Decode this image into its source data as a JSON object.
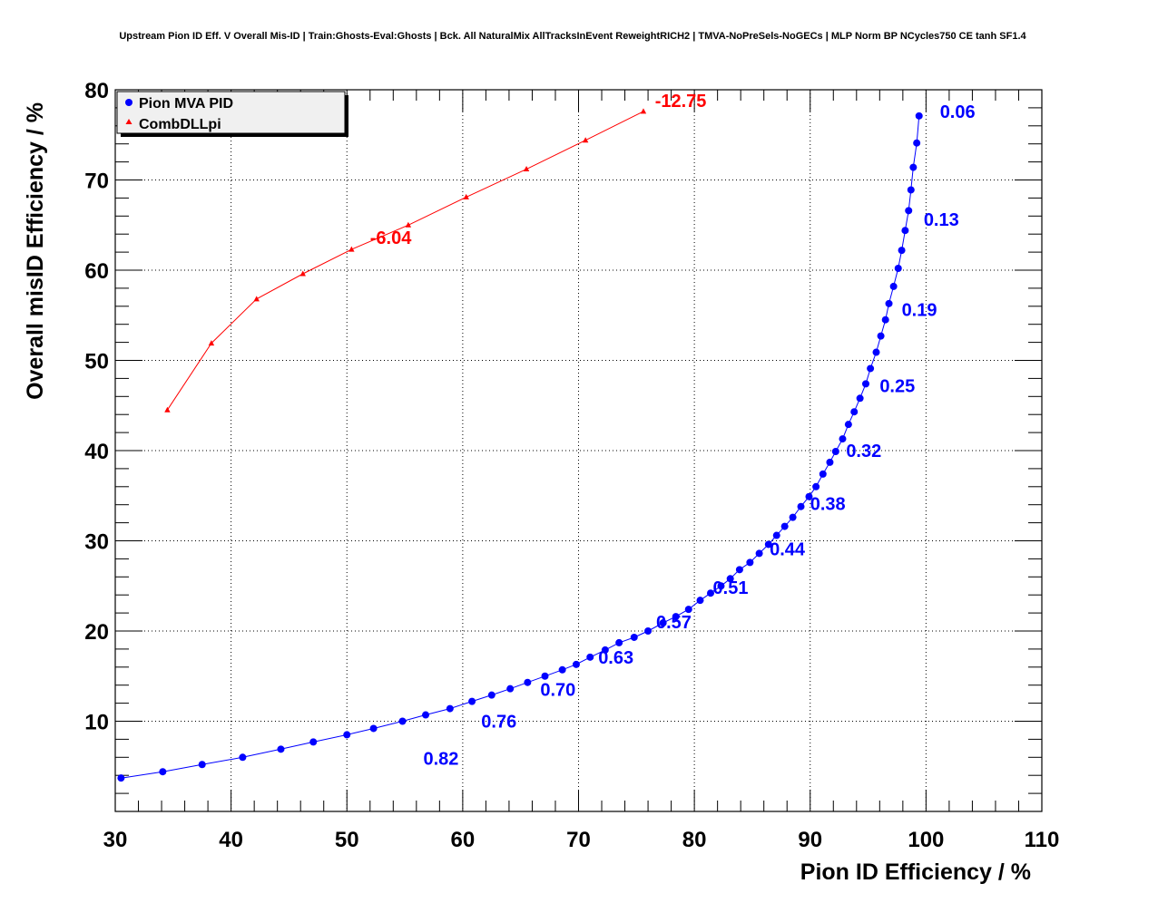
{
  "chart_data": {
    "type": "scatter",
    "title": "Upstream Pion ID Eff. V Overall Mis-ID | Train:Ghosts-Eval:Ghosts | Bck. All NaturalMix AllTracksInEvent ReweightRICH2 | TMVA-NoPreSels-NoGECs | MLP Norm BP NCycles750 CE tanh SF1.4",
    "xlabel": "Pion ID Efficiency / %",
    "ylabel": "Overall misID Efficiency / %",
    "xlim": [
      30,
      110
    ],
    "ylim": [
      0,
      80
    ],
    "xticks": [
      "30",
      "40",
      "50",
      "60",
      "70",
      "80",
      "90",
      "100",
      "110"
    ],
    "yticks": [
      "10",
      "20",
      "30",
      "40",
      "50",
      "60",
      "70",
      "80"
    ],
    "grid": true,
    "legend_position": "top-left",
    "series": [
      {
        "name": "Pion MVA PID",
        "color": "#0000ff",
        "marker": "circle",
        "points": [
          [
            30.5,
            3.7
          ],
          [
            34.1,
            4.4
          ],
          [
            37.5,
            5.2
          ],
          [
            41.0,
            6.0
          ],
          [
            44.3,
            6.9
          ],
          [
            47.1,
            7.7
          ],
          [
            50.0,
            8.5
          ],
          [
            52.3,
            9.2
          ],
          [
            54.8,
            10.0
          ],
          [
            56.8,
            10.7
          ],
          [
            58.9,
            11.4
          ],
          [
            60.8,
            12.2
          ],
          [
            62.5,
            12.9
          ],
          [
            64.1,
            13.6
          ],
          [
            65.6,
            14.3
          ],
          [
            67.1,
            15.0
          ],
          [
            68.6,
            15.7
          ],
          [
            69.8,
            16.3
          ],
          [
            71.0,
            17.1
          ],
          [
            72.3,
            17.9
          ],
          [
            73.5,
            18.7
          ],
          [
            74.8,
            19.3
          ],
          [
            76.0,
            20.0
          ],
          [
            77.3,
            20.9
          ],
          [
            78.4,
            21.6
          ],
          [
            79.5,
            22.4
          ],
          [
            80.5,
            23.4
          ],
          [
            81.4,
            24.2
          ],
          [
            82.3,
            25.0
          ],
          [
            83.1,
            25.8
          ],
          [
            83.9,
            26.8
          ],
          [
            84.8,
            27.6
          ],
          [
            85.6,
            28.6
          ],
          [
            86.4,
            29.6
          ],
          [
            87.1,
            30.6
          ],
          [
            87.8,
            31.6
          ],
          [
            88.5,
            32.6
          ],
          [
            89.2,
            33.8
          ],
          [
            89.9,
            34.9
          ],
          [
            90.5,
            36.0
          ],
          [
            91.1,
            37.4
          ],
          [
            91.7,
            38.7
          ],
          [
            92.2,
            39.9
          ],
          [
            92.8,
            41.3
          ],
          [
            93.3,
            42.9
          ],
          [
            93.8,
            44.3
          ],
          [
            94.3,
            45.8
          ],
          [
            94.8,
            47.4
          ],
          [
            95.2,
            49.1
          ],
          [
            95.7,
            50.9
          ],
          [
            96.1,
            52.7
          ],
          [
            96.5,
            54.5
          ],
          [
            96.8,
            56.3
          ],
          [
            97.2,
            58.2
          ],
          [
            97.6,
            60.2
          ],
          [
            97.9,
            62.2
          ],
          [
            98.2,
            64.4
          ],
          [
            98.5,
            66.6
          ],
          [
            98.7,
            68.9
          ],
          [
            98.9,
            71.4
          ],
          [
            99.2,
            74.1
          ],
          [
            99.4,
            77.1
          ]
        ]
      },
      {
        "name": "CombDLLpi",
        "color": "#ff0000",
        "marker": "triangle",
        "points": [
          [
            34.5,
            44.5
          ],
          [
            38.3,
            51.9
          ],
          [
            42.2,
            56.8
          ],
          [
            46.2,
            59.6
          ],
          [
            50.4,
            62.3
          ],
          [
            55.3,
            65.0
          ],
          [
            60.3,
            68.1
          ],
          [
            65.5,
            71.2
          ],
          [
            70.6,
            74.4
          ],
          [
            75.6,
            77.6
          ]
        ]
      }
    ],
    "annotations_blue": [
      {
        "text": "0.06",
        "x": 101.2,
        "y": 76.9
      },
      {
        "text": "0.13",
        "x": 99.8,
        "y": 64.9
      },
      {
        "text": "0.19",
        "x": 97.9,
        "y": 54.9
      },
      {
        "text": "0.25",
        "x": 96.0,
        "y": 46.5
      },
      {
        "text": "0.32",
        "x": 93.1,
        "y": 39.3
      },
      {
        "text": "0.38",
        "x": 90.0,
        "y": 33.4
      },
      {
        "text": "0.44",
        "x": 86.5,
        "y": 28.4
      },
      {
        "text": "0.51",
        "x": 81.6,
        "y": 24.1
      },
      {
        "text": "0.57",
        "x": 76.7,
        "y": 20.3
      },
      {
        "text": "0.63",
        "x": 71.7,
        "y": 16.4
      },
      {
        "text": "0.70",
        "x": 66.7,
        "y": 12.8
      },
      {
        "text": "0.76",
        "x": 61.6,
        "y": 9.3
      },
      {
        "text": "0.82",
        "x": 56.6,
        "y": 5.2
      }
    ],
    "annotations_red": [
      {
        "text": "-12.75",
        "x": 76.6,
        "y": 78.1
      },
      {
        "text": "-6.04",
        "x": 52.0,
        "y": 62.9
      }
    ]
  }
}
